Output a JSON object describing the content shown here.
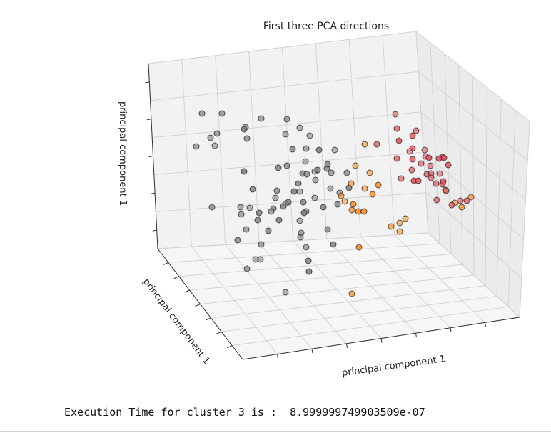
{
  "chart_data": {
    "type": "scatter",
    "title": "First three PCA directions",
    "xlabel": "principal component 1",
    "ylabel": "principal component 1",
    "zlabel": "principal component 1",
    "projection": "3d",
    "grid": true,
    "tick_labels": "none",
    "series": [
      {
        "color": "#7f7f7f",
        "points": [
          [
            283,
            159
          ],
          [
            311,
            159
          ],
          [
            366,
            166
          ],
          [
            402,
            167
          ],
          [
            344,
            178
          ],
          [
            342,
            181
          ],
          [
            420,
            179
          ],
          [
            400,
            188
          ],
          [
            295,
            193
          ],
          [
            304,
            187
          ],
          [
            346,
            194
          ],
          [
            275,
            205
          ],
          [
            301,
            204
          ],
          [
            434,
            190
          ],
          [
            410,
            209
          ],
          [
            429,
            208
          ],
          [
            447,
            210
          ],
          [
            469,
            210
          ],
          [
            390,
            235
          ],
          [
            402,
            232
          ],
          [
            424,
            243
          ],
          [
            430,
            244
          ],
          [
            441,
            240
          ],
          [
            445,
            238
          ],
          [
            458,
            236
          ],
          [
            464,
            242
          ],
          [
            428,
            226
          ],
          [
            459,
            230
          ],
          [
            486,
            242
          ],
          [
            342,
            240
          ],
          [
            418,
            257
          ],
          [
            442,
            252
          ],
          [
            420,
            268
          ],
          [
            463,
            264
          ],
          [
            489,
            263
          ],
          [
            476,
            270
          ],
          [
            354,
            265
          ],
          [
            388,
            267
          ],
          [
            412,
            268
          ],
          [
            386,
            277
          ],
          [
            404,
            283
          ],
          [
            400,
            285
          ],
          [
            397,
            289
          ],
          [
            425,
            283
          ],
          [
            441,
            277
          ],
          [
            473,
            286
          ],
          [
            453,
            290
          ],
          [
            383,
            292
          ],
          [
            380,
            296
          ],
          [
            337,
            290
          ],
          [
            350,
            291
          ],
          [
            297,
            290
          ],
          [
            361,
            308
          ],
          [
            420,
            309
          ],
          [
            391,
            308
          ],
          [
            338,
            300
          ],
          [
            363,
            298
          ],
          [
            345,
            321
          ],
          [
            429,
            296
          ],
          [
            426,
            298
          ],
          [
            376,
            323
          ],
          [
            459,
            321
          ],
          [
            422,
            326
          ],
          [
            421,
            332
          ],
          [
            429,
            346
          ],
          [
            467,
            342
          ],
          [
            333,
            336
          ],
          [
            366,
            342
          ],
          [
            358,
            363
          ],
          [
            433,
            380
          ],
          [
            346,
            376
          ],
          [
            365,
            363
          ],
          [
            432,
            365
          ],
          [
            400,
            409
          ]
        ]
      },
      {
        "color": "#ff8c1a",
        "points": [
          [
            511,
            202
          ],
          [
            498,
            232
          ],
          [
            518,
            242
          ],
          [
            530,
            259
          ],
          [
            511,
            264
          ],
          [
            522,
            272
          ],
          [
            492,
            257
          ],
          [
            478,
            274
          ],
          [
            483,
            282
          ],
          [
            495,
            286
          ],
          [
            493,
            294
          ],
          [
            502,
            296
          ],
          [
            510,
            296
          ],
          [
            568,
            306
          ],
          [
            560,
            312
          ],
          [
            548,
            317
          ],
          [
            560,
            324
          ],
          [
            503,
            346
          ],
          [
            493,
            411
          ],
          [
            624,
            266
          ],
          [
            637,
            284
          ],
          [
            647,
            290
          ],
          [
            660,
            276
          ]
        ]
      },
      {
        "color": "#e0505a",
        "points": [
          [
            554,
            160
          ],
          [
            556,
            180
          ],
          [
            583,
            183
          ],
          [
            578,
            190
          ],
          [
            559,
            197
          ],
          [
            528,
            202
          ],
          [
            578,
            208
          ],
          [
            574,
            212
          ],
          [
            595,
            210
          ],
          [
            596,
            219
          ],
          [
            556,
            222
          ],
          [
            578,
            223
          ],
          [
            601,
            221
          ],
          [
            620,
            220
          ],
          [
            615,
            222
          ],
          [
            622,
            221
          ],
          [
            590,
            229
          ],
          [
            603,
            232
          ],
          [
            628,
            231
          ],
          [
            577,
            238
          ],
          [
            598,
            244
          ],
          [
            604,
            243
          ],
          [
            616,
            243
          ],
          [
            562,
            250
          ],
          [
            580,
            253
          ],
          [
            586,
            253
          ],
          [
            611,
            257
          ],
          [
            620,
            258
          ],
          [
            625,
            267
          ],
          [
            612,
            280
          ],
          [
            633,
            287
          ],
          [
            645,
            281
          ],
          [
            654,
            281
          ],
          [
            621,
            254
          ],
          [
            604,
            249
          ]
        ]
      }
    ]
  },
  "footer": {
    "execution_text": "Execution Time for cluster 3 is :  8.999999749903509e-07"
  }
}
